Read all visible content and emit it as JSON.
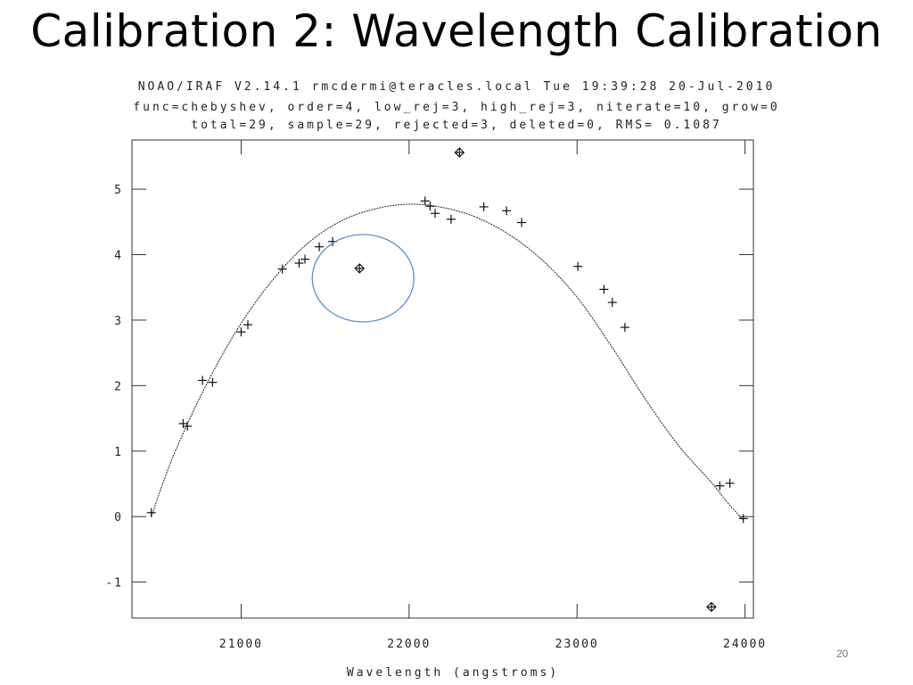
{
  "slide": {
    "title": "Calibration 2: Wavelength Calibration",
    "page_number": "20"
  },
  "chart_data": {
    "type": "scatter",
    "header_lines": [
      "NOAO/IRAF V2.14.1 rmcdermi@teracles.local Tue 19:39:28 20-Jul-2010",
      "func=chebyshev, order=4, low_rej=3, high_rej=3, niterate=10, grow=0",
      "total=29, sample=29, rejected=3, deleted=0, RMS= 0.1087"
    ],
    "xlabel": "Wavelength (angstroms)",
    "ylabel": "",
    "xlim": [
      20350,
      24050
    ],
    "ylim": [
      -1.55,
      5.75
    ],
    "xticks": [
      21000,
      22000,
      23000,
      24000
    ],
    "xtick_labels": [
      "21000",
      "22000",
      "23000",
      "24000"
    ],
    "yticks": [
      -1,
      0,
      1,
      2,
      3,
      4,
      5
    ],
    "ytick_labels": [
      "-1",
      "0",
      "1",
      "2",
      "3",
      "4",
      "5"
    ],
    "grid": false,
    "series": [
      {
        "marker": "plus",
        "points": [
          [
            20465,
            0.06
          ],
          [
            20655,
            1.42
          ],
          [
            20680,
            1.38
          ],
          [
            20770,
            2.08
          ],
          [
            20830,
            2.05
          ],
          [
            21000,
            2.82
          ],
          [
            21040,
            2.93
          ],
          [
            21245,
            3.78
          ],
          [
            21345,
            3.87
          ],
          [
            21380,
            3.93
          ],
          [
            21465,
            4.12
          ],
          [
            21545,
            4.2
          ],
          [
            22095,
            4.82
          ],
          [
            22125,
            4.74
          ],
          [
            22155,
            4.63
          ],
          [
            22250,
            4.54
          ],
          [
            22445,
            4.73
          ],
          [
            22580,
            4.67
          ],
          [
            22670,
            4.49
          ],
          [
            23005,
            3.82
          ],
          [
            23160,
            3.47
          ],
          [
            23210,
            3.27
          ],
          [
            23285,
            2.89
          ],
          [
            23850,
            0.47
          ],
          [
            23910,
            0.51
          ],
          [
            23990,
            -0.03
          ]
        ]
      },
      {
        "marker": "rejected",
        "points": [
          [
            21705,
            3.79
          ],
          [
            22300,
            5.56
          ],
          [
            23800,
            -1.38
          ]
        ]
      }
    ],
    "fit_curve": {
      "function": "chebyshev",
      "points": [
        [
          20465,
          0.0
        ],
        [
          20600,
          0.95
        ],
        [
          20800,
          2.05
        ],
        [
          21000,
          2.95
        ],
        [
          21200,
          3.65
        ],
        [
          21400,
          4.18
        ],
        [
          21600,
          4.52
        ],
        [
          21800,
          4.7
        ],
        [
          22000,
          4.77
        ],
        [
          22200,
          4.72
        ],
        [
          22400,
          4.57
        ],
        [
          22600,
          4.3
        ],
        [
          22800,
          3.9
        ],
        [
          23000,
          3.35
        ],
        [
          23200,
          2.62
        ],
        [
          23400,
          1.82
        ],
        [
          23600,
          1.1
        ],
        [
          23800,
          0.52
        ],
        [
          23900,
          0.2
        ],
        [
          23990,
          -0.05
        ]
      ]
    },
    "highlight_circle": {
      "x": 21705,
      "y": 3.79,
      "color": "#5b8fc9"
    }
  }
}
